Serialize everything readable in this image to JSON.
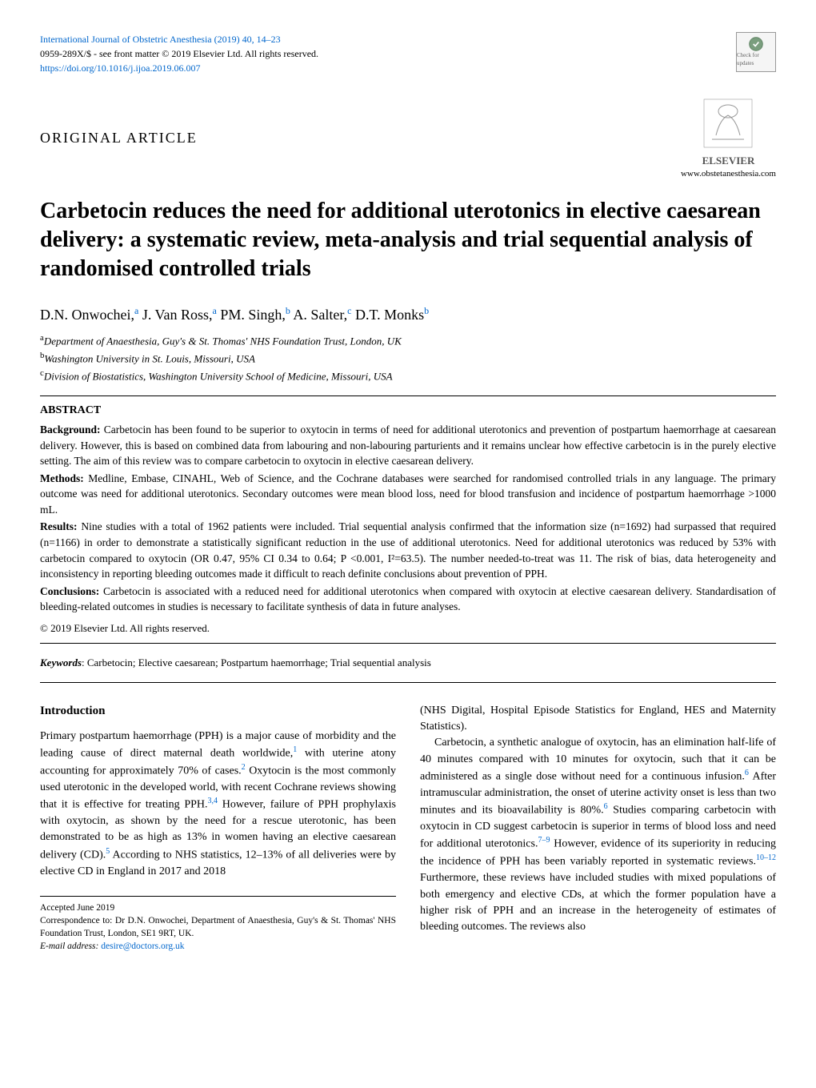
{
  "header": {
    "journal_ref": "International Journal of Obstetric Anesthesia (2019) 40, 14–23",
    "issn_line": "0959-289X/$ - see front matter © 2019 Elsevier Ltd. All rights reserved.",
    "doi_url": "https://doi.org/10.1016/j.ijoa.2019.06.007",
    "check_label": "Check for updates"
  },
  "article_type": "ORIGINAL ARTICLE",
  "elsevier": {
    "brand": "ELSEVIER",
    "url": "www.obstetanesthesia.com"
  },
  "title": "Carbetocin reduces the need for additional uterotonics in elective caesarean delivery: a systematic review, meta-analysis and trial sequential analysis of randomised controlled trials",
  "authors_html": "D.N. Onwochei,<sup>a</sup> J. Van Ross,<sup>a</sup> PM. Singh,<sup>b</sup> A. Salter,<sup>c</sup> D.T. Monks<sup>b</sup>",
  "affiliations": {
    "a": "Department of Anaesthesia, Guy's & St. Thomas' NHS Foundation Trust, London, UK",
    "b": "Washington University in St. Louis, Missouri, USA",
    "c": "Division of Biostatistics, Washington University School of Medicine, Missouri, USA"
  },
  "abstract": {
    "heading": "ABSTRACT",
    "background_label": "Background:",
    "background": " Carbetocin has been found to be superior to oxytocin in terms of need for additional uterotonics and prevention of postpartum haemorrhage at caesarean delivery. However, this is based on combined data from labouring and non-labouring parturients and it remains unclear how effective carbetocin is in the purely elective setting. The aim of this review was to compare carbetocin to oxytocin in elective caesarean delivery.",
    "methods_label": "Methods:",
    "methods": " Medline, Embase, CINAHL, Web of Science, and the Cochrane databases were searched for randomised controlled trials in any language. The primary outcome was need for additional uterotonics. Secondary outcomes were mean blood loss, need for blood transfusion and incidence of postpartum haemorrhage >1000 mL.",
    "results_label": "Results:",
    "results": " Nine studies with a total of 1962 patients were included. Trial sequential analysis confirmed that the information size (n=1692) had surpassed that required (n=1166) in order to demonstrate a statistically significant reduction in the use of additional uterotonics. Need for additional uterotonics was reduced by 53% with carbetocin compared to oxytocin (OR 0.47, 95% CI 0.34 to 0.64; P <0.001, I²=63.5). The number needed-to-treat was 11. The risk of bias, data heterogeneity and inconsistency in reporting bleeding outcomes made it difficult to reach definite conclusions about prevention of PPH.",
    "conclusions_label": "Conclusions:",
    "conclusions": " Carbetocin is associated with a reduced need for additional uterotonics when compared with oxytocin at elective caesarean delivery. Standardisation of bleeding-related outcomes in studies is necessary to facilitate synthesis of data in future analyses.",
    "copyright": "© 2019 Elsevier Ltd. All rights reserved."
  },
  "keywords": {
    "label": "Keywords",
    "text": ": Carbetocin; Elective caesarean; Postpartum haemorrhage; Trial sequential analysis"
  },
  "intro": {
    "heading": "Introduction",
    "p1": "Primary postpartum haemorrhage (PPH) is a major cause of morbidity and the leading cause of direct maternal death worldwide,",
    "p1b": " with uterine atony accounting for approximately 70% of cases.",
    "p1c": " Oxytocin is the most commonly used uterotonic in the developed world, with recent Cochrane reviews showing that it is effective for treating PPH.",
    "p1d": " However, failure of PPH prophylaxis with oxytocin, as shown by the need for a rescue uterotonic, has been demonstrated to be as high as 13% in women having an elective caesarean delivery (CD).",
    "p1e": " According to NHS statistics, 12–13% of all deliveries were by elective CD in England in 2017 and 2018",
    "col2_p1": "(NHS Digital, Hospital Episode Statistics for England, HES and Maternity Statistics).",
    "col2_p2a": "Carbetocin, a synthetic analogue of oxytocin, has an elimination half-life of 40 minutes compared with 10 minutes for oxytocin, such that it can be administered as a single dose without need for a continuous infusion.",
    "col2_p2b": " After intramuscular administration, the onset of uterine activity onset is less than two minutes and its bioavailability is 80%.",
    "col2_p2c": " Studies comparing carbetocin with oxytocin in CD suggest carbetocin is superior in terms of blood loss and need for additional uterotonics.",
    "col2_p2d": " However, evidence of its superiority in reducing the incidence of PPH has been variably reported in systematic reviews.",
    "col2_p2e": " Furthermore, these reviews have included studies with mixed populations of both emergency and elective CDs, at which the former population have a higher risk of PPH and an increase in the heterogeneity of estimates of bleeding outcomes. The reviews also"
  },
  "refs": {
    "r1": "1",
    "r2": "2",
    "r34": "3,4",
    "r5": "5",
    "r6a": "6",
    "r6b": "6",
    "r79": "7–9",
    "r1012": "10–12"
  },
  "footer": {
    "accepted": "Accepted June 2019",
    "correspondence": "Correspondence to: Dr D.N. Onwochei, Department of Anaesthesia, Guy's & St. Thomas' NHS Foundation Trust, London, SE1 9RT, UK.",
    "email_label": "E-mail address:",
    "email": "desire@doctors.org.uk"
  },
  "colors": {
    "link": "#0066cc",
    "text": "#000000",
    "background": "#ffffff"
  }
}
